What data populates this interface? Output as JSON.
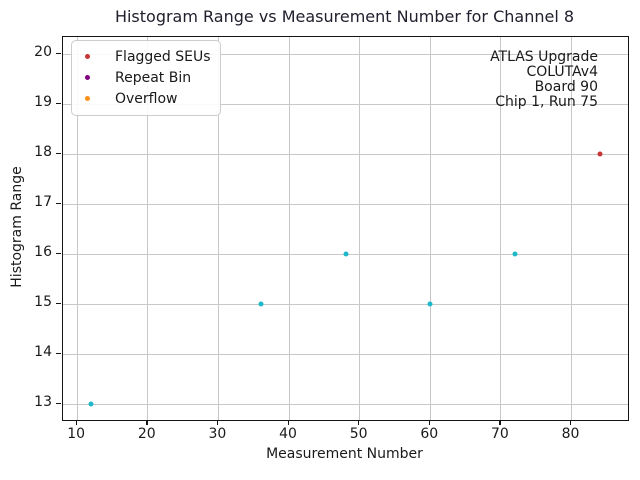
{
  "chart_data": {
    "type": "scatter",
    "title": "Histogram Range vs Measurement Number for Channel 8",
    "xlabel": "Measurement Number",
    "ylabel": "Histogram Range",
    "xlim": [
      8,
      88
    ],
    "ylim": [
      12.68,
      20.35
    ],
    "xticks": [
      10,
      20,
      30,
      40,
      50,
      60,
      70,
      80
    ],
    "yticks": [
      13,
      14,
      15,
      16,
      17,
      18,
      19,
      20
    ],
    "grid": true,
    "legend_position": "upper-left",
    "series": [
      {
        "name": "",
        "in_legend": false,
        "color": "#1fb8c8",
        "points": [
          [
            12,
            13
          ],
          [
            36,
            15
          ],
          [
            48,
            16
          ],
          [
            60,
            15
          ],
          [
            72,
            16
          ]
        ]
      },
      {
        "name": "Flagged SEUs",
        "in_legend": true,
        "color": "#c73535",
        "points": [
          [
            84,
            18
          ]
        ]
      },
      {
        "name": "Repeat Bin",
        "in_legend": true,
        "color": "#800080",
        "points": []
      },
      {
        "name": "Overflow",
        "in_legend": true,
        "color": "#ff9015",
        "points": []
      }
    ],
    "annotation": [
      "ATLAS Upgrade",
      "COLUTAv4",
      "Board 90",
      "Chip 1, Run 75"
    ]
  }
}
